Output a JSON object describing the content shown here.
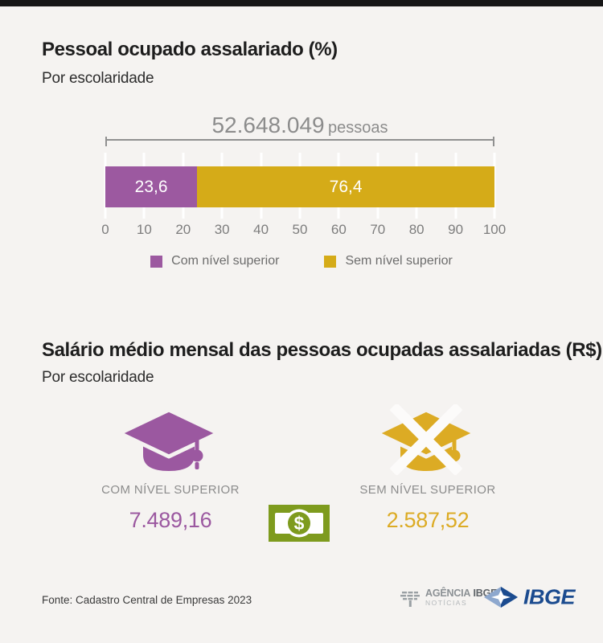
{
  "page": {
    "background": "#f5f3f1",
    "top_bar_color": "#161616"
  },
  "section1": {
    "title": "Pessoal ocupado assalariado (%)",
    "subtitle": "Por escolaridade",
    "total_value": "52.648.049",
    "total_unit": "pessoas"
  },
  "chart_data": {
    "type": "bar",
    "stacked": true,
    "orientation": "horizontal",
    "title": "Pessoal ocupado assalariado (%)",
    "subtitle": "Por escolaridade",
    "total_annotation": "52.648.049 pessoas",
    "categories": [
      "Com nível superior",
      "Sem nível superior"
    ],
    "values": [
      23.6,
      76.4
    ],
    "value_labels": [
      "23,6",
      "76,4"
    ],
    "colors": [
      "#9c59a0",
      "#d5ab18"
    ],
    "xlim": [
      0,
      100
    ],
    "ticks": [
      0,
      10,
      20,
      30,
      40,
      50,
      60,
      70,
      80,
      90,
      100
    ],
    "grid": true,
    "legend_position": "bottom",
    "legend": [
      {
        "label": "Com nível superior",
        "color": "#9c59a0"
      },
      {
        "label": "Sem nível superior",
        "color": "#d5ab18"
      }
    ]
  },
  "section2": {
    "title": "Salário médio mensal das pessoas ocupadas assalariadas (R$)",
    "subtitle": "Por escolaridade",
    "items": [
      {
        "label": "COM NÍVEL SUPERIOR",
        "value": "7.489,16",
        "color": "#9b58a0",
        "icon": "graduation-cap-icon"
      },
      {
        "label": "SEM NÍVEL SUPERIOR",
        "value": "2.587,52",
        "color": "#dcab24",
        "icon": "graduation-cap-crossed-icon"
      }
    ],
    "money_icon_color": "#7e9b1e",
    "money_icon_symbol": "$"
  },
  "footer": {
    "source": "Fonte: Cadastro Central de Empresas 2023",
    "agency_logo": {
      "word1": "AGÊNCIA",
      "word2": "IBGE",
      "line2": "NOTÍCIAS"
    },
    "ibge_logo_text": "IBGE",
    "ibge_blue_dark": "#1b4b8f",
    "ibge_blue_light": "#8ea8ce"
  }
}
